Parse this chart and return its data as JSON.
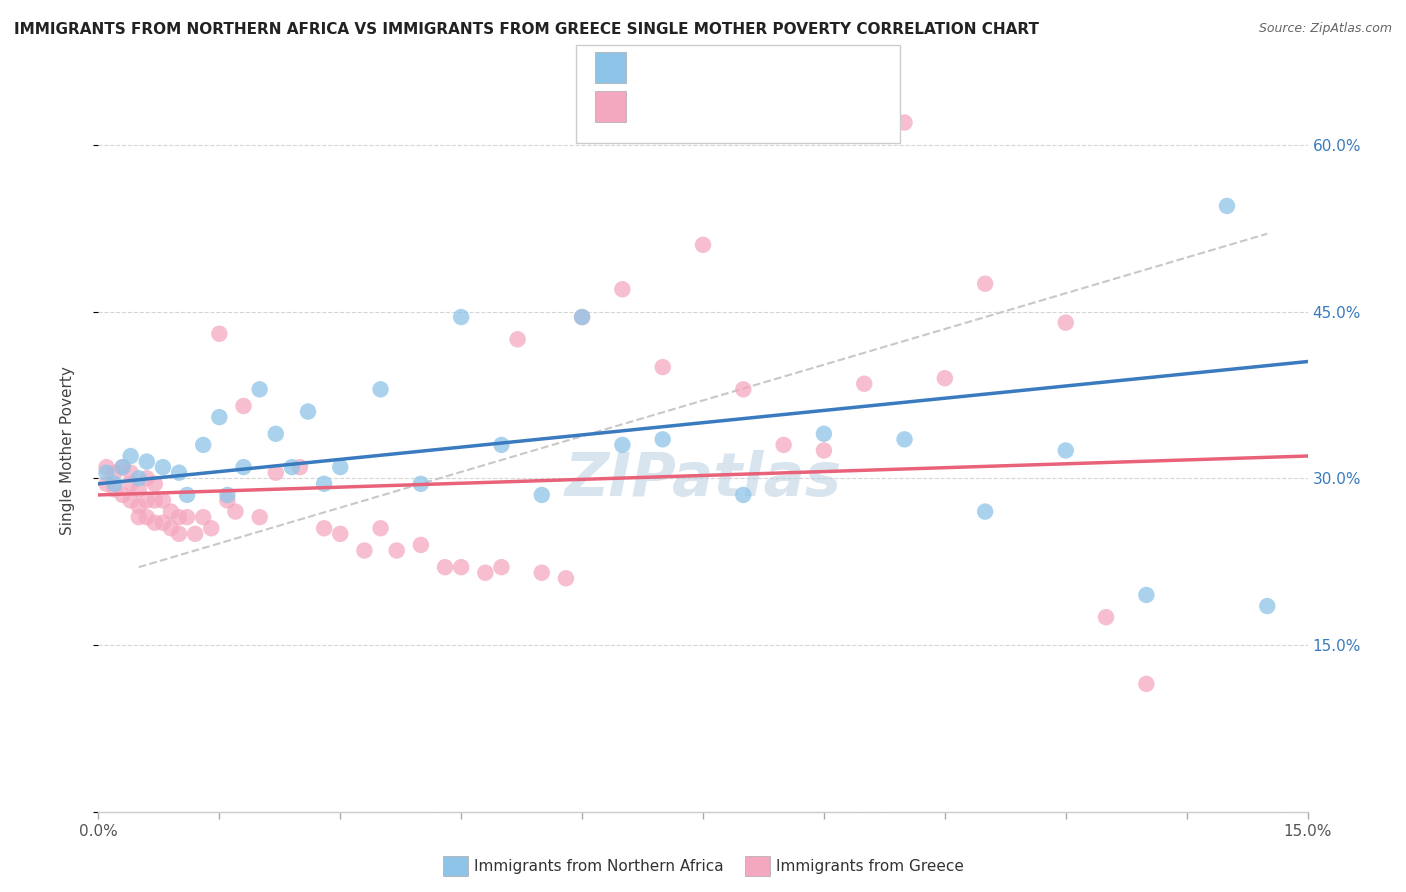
{
  "title": "IMMIGRANTS FROM NORTHERN AFRICA VS IMMIGRANTS FROM GREECE SINGLE MOTHER POVERTY CORRELATION CHART",
  "source": "Source: ZipAtlas.com",
  "ylabel": "Single Mother Poverty",
  "x_label_1": "Immigrants from Northern Africa",
  "x_label_2": "Immigrants from Greece",
  "xlim": [
    0.0,
    0.15
  ],
  "ylim": [
    0.0,
    0.65
  ],
  "color_blue": "#8ec4e8",
  "color_pink": "#f4a8c0",
  "color_blue_line": "#3a7bbf",
  "color_pink_line": "#e8637a",
  "color_dashed_line": "#c8c8c8",
  "watermark": "ZIPatlas",
  "blue_scatter_x": [
    0.001,
    0.002,
    0.003,
    0.004,
    0.005,
    0.006,
    0.008,
    0.01,
    0.011,
    0.013,
    0.015,
    0.016,
    0.018,
    0.02,
    0.022,
    0.024,
    0.026,
    0.028,
    0.03,
    0.035,
    0.04,
    0.045,
    0.05,
    0.055,
    0.06,
    0.065,
    0.07,
    0.08,
    0.09,
    0.1,
    0.11,
    0.12,
    0.13,
    0.14,
    0.145
  ],
  "blue_scatter_y": [
    0.305,
    0.295,
    0.31,
    0.32,
    0.3,
    0.315,
    0.31,
    0.305,
    0.285,
    0.33,
    0.355,
    0.285,
    0.31,
    0.38,
    0.34,
    0.31,
    0.36,
    0.295,
    0.31,
    0.38,
    0.295,
    0.445,
    0.33,
    0.285,
    0.445,
    0.33,
    0.335,
    0.285,
    0.34,
    0.335,
    0.27,
    0.325,
    0.195,
    0.545,
    0.185
  ],
  "pink_scatter_x": [
    0.001,
    0.001,
    0.002,
    0.002,
    0.003,
    0.003,
    0.004,
    0.004,
    0.004,
    0.005,
    0.005,
    0.005,
    0.006,
    0.006,
    0.006,
    0.007,
    0.007,
    0.007,
    0.008,
    0.008,
    0.009,
    0.009,
    0.01,
    0.01,
    0.011,
    0.012,
    0.013,
    0.014,
    0.015,
    0.016,
    0.017,
    0.018,
    0.02,
    0.022,
    0.025,
    0.028,
    0.03,
    0.033,
    0.035,
    0.037,
    0.04,
    0.043,
    0.045,
    0.048,
    0.05,
    0.052,
    0.055,
    0.058,
    0.06,
    0.065,
    0.07,
    0.075,
    0.08,
    0.085,
    0.09,
    0.095,
    0.1,
    0.105,
    0.11,
    0.12,
    0.125,
    0.13
  ],
  "pink_scatter_y": [
    0.31,
    0.295,
    0.29,
    0.305,
    0.285,
    0.31,
    0.295,
    0.28,
    0.305,
    0.275,
    0.265,
    0.29,
    0.265,
    0.28,
    0.3,
    0.26,
    0.28,
    0.295,
    0.26,
    0.28,
    0.255,
    0.27,
    0.265,
    0.25,
    0.265,
    0.25,
    0.265,
    0.255,
    0.43,
    0.28,
    0.27,
    0.365,
    0.265,
    0.305,
    0.31,
    0.255,
    0.25,
    0.235,
    0.255,
    0.235,
    0.24,
    0.22,
    0.22,
    0.215,
    0.22,
    0.425,
    0.215,
    0.21,
    0.445,
    0.47,
    0.4,
    0.51,
    0.38,
    0.33,
    0.325,
    0.385,
    0.62,
    0.39,
    0.475,
    0.44,
    0.175,
    0.115
  ],
  "blue_line_x0": 0.0,
  "blue_line_y0": 0.295,
  "blue_line_x1": 0.15,
  "blue_line_y1": 0.405,
  "pink_line_x0": 0.0,
  "pink_line_y0": 0.285,
  "pink_line_x1": 0.15,
  "pink_line_y1": 0.32,
  "dash_line_x0": 0.005,
  "dash_line_y0": 0.22,
  "dash_line_x1": 0.145,
  "dash_line_y1": 0.52
}
